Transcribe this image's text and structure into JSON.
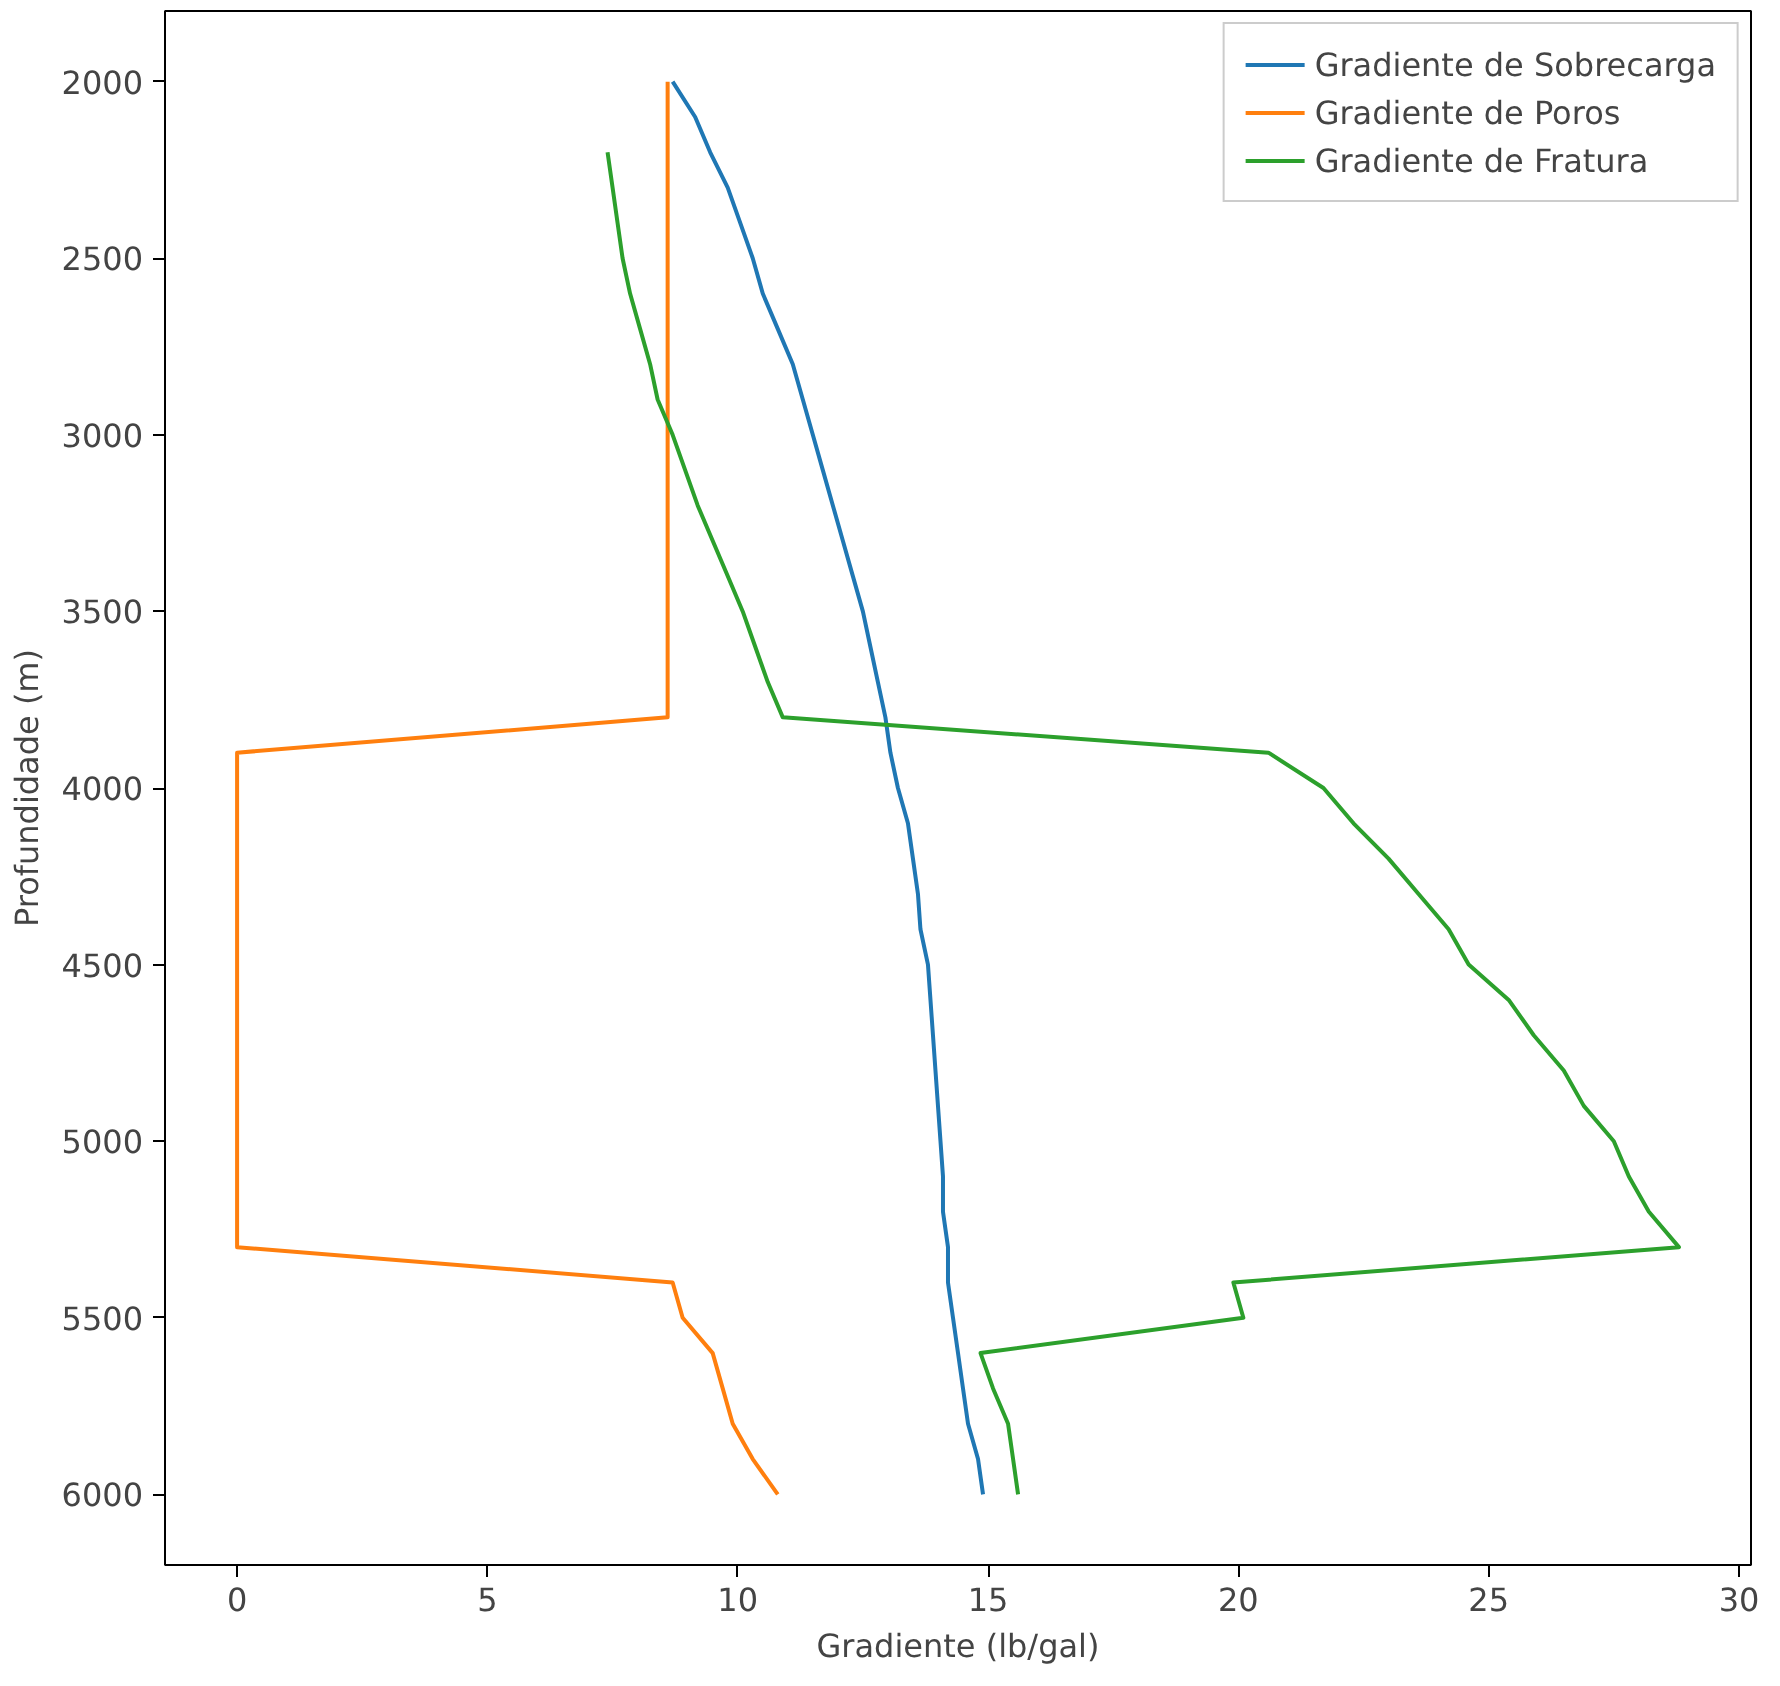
{
  "chart_data": {
    "type": "line",
    "xlabel": "Gradiente (lb/gal)",
    "ylabel": "Profundidade (m)",
    "xlim": [
      -1.44,
      30.24
    ],
    "ylim": [
      6200,
      1800
    ],
    "xticks": [
      0,
      5,
      10,
      15,
      20,
      25,
      30
    ],
    "yticks": [
      2000,
      2500,
      3000,
      3500,
      4000,
      4500,
      5000,
      5500,
      6000
    ],
    "grid": false,
    "legend": "top right",
    "line_style": "solid",
    "marker": "none",
    "series": [
      {
        "name": "Gradiente de Sobrecarga",
        "color": "#1f77b4",
        "x": [
          8.7,
          9.15,
          9.45,
          9.8,
          10.05,
          10.3,
          10.5,
          10.8,
          11.1,
          11.3,
          11.5,
          11.7,
          11.9,
          12.1,
          12.3,
          12.5,
          12.65,
          12.8,
          12.95,
          13.05,
          13.2,
          13.4,
          13.5,
          13.6,
          13.65,
          13.8,
          13.85,
          13.9,
          13.95,
          14.0,
          14.05,
          14.1,
          14.1,
          14.2,
          14.2,
          14.3,
          14.4,
          14.5,
          14.6,
          14.8,
          14.9
        ],
        "values": [
          2000,
          2100,
          2200,
          2300,
          2400,
          2500,
          2600,
          2700,
          2800,
          2900,
          3000,
          3100,
          3200,
          3300,
          3400,
          3500,
          3600,
          3700,
          3800,
          3900,
          4000,
          4100,
          4200,
          4300,
          4400,
          4500,
          4600,
          4700,
          4800,
          4900,
          5000,
          5100,
          5200,
          5300,
          5400,
          5500,
          5600,
          5700,
          5800,
          5900,
          6000
        ]
      },
      {
        "name": "Gradiente de Poros",
        "color": "#ff7f0e",
        "x": [
          8.6,
          8.6,
          0,
          0,
          8.7,
          8.9,
          9.5,
          9.7,
          9.9,
          10.3,
          10.8
        ],
        "values": [
          2000,
          3800,
          3900,
          5300,
          5400,
          5500,
          5600,
          5700,
          5800,
          5900,
          6000
        ]
      },
      {
        "name": "Gradiente de Fratura",
        "color": "#2ca02c",
        "x": [
          7.4,
          7.5,
          7.6,
          7.7,
          7.85,
          8.05,
          8.25,
          8.4,
          8.7,
          8.95,
          9.2,
          9.5,
          9.8,
          10.1,
          10.35,
          10.6,
          10.9,
          20.6,
          21.7,
          22.3,
          23.0,
          23.6,
          24.2,
          24.6,
          25.4,
          25.9,
          26.5,
          26.9,
          27.5,
          27.8,
          28.2,
          28.8,
          19.9,
          20.1,
          14.85,
          15.1,
          15.4,
          15.5,
          15.6
        ],
        "values": [
          2200,
          2300,
          2400,
          2500,
          2600,
          2700,
          2800,
          2900,
          3000,
          3100,
          3200,
          3300,
          3400,
          3500,
          3600,
          3700,
          3800,
          3900,
          4000,
          4100,
          4200,
          4300,
          4400,
          4500,
          4600,
          4700,
          4800,
          4900,
          5000,
          5100,
          5200,
          5300,
          5400,
          5500,
          5600,
          5700,
          5800,
          5900,
          6000
        ]
      }
    ]
  }
}
